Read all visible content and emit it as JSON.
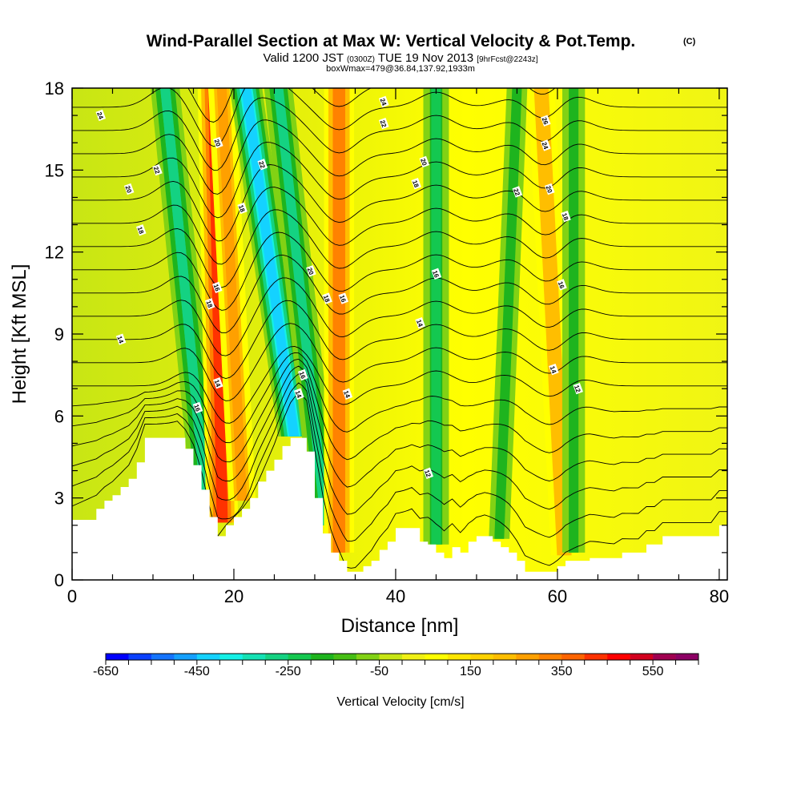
{
  "chart_data": {
    "type": "heatmap",
    "title": "Wind-Parallel Section at Max W: Vertical Velocity & Pot.Temp.",
    "title_mark": "(C)",
    "subtitle_parts": [
      "Valid 1200 JST ",
      "(0300Z)",
      " TUE 19 Nov 2013 ",
      "[9hrFcst@2243z]"
    ],
    "subtitle2": "boxWmax=479@36.84,137.92,1933m",
    "xlabel": "Distance [nm]",
    "ylabel": "Height [Kft MSL]",
    "xlim": [
      0,
      81
    ],
    "ylim": [
      0,
      18
    ],
    "xticks": [
      0,
      20,
      40,
      60,
      80
    ],
    "yticks": [
      0,
      3,
      6,
      9,
      12,
      15,
      18
    ],
    "grid": false,
    "colorbar": {
      "label": "Vertical Velocity [cm/s]",
      "min": -650,
      "max": 650,
      "step": 50,
      "tick_labels": [
        "-650",
        "-450",
        "-250",
        "-50",
        "150",
        "350",
        "550"
      ],
      "colors": [
        "#0000ff",
        "#0a40ff",
        "#1474ff",
        "#14a0ff",
        "#14d2ff",
        "#14f0e6",
        "#14e1b4",
        "#14d282",
        "#14c850",
        "#1eb41e",
        "#46be14",
        "#82d214",
        "#c8e614",
        "#f0f014",
        "#ffff00",
        "#ffe600",
        "#ffd200",
        "#ffbe00",
        "#ffa000",
        "#ff8200",
        "#ff6400",
        "#ff3200",
        "#ff0000",
        "#d2001e",
        "#a00050",
        "#8c0064"
      ]
    },
    "vertical_velocity_bands": [
      {
        "distance_at_3kft": 16.5,
        "distance_at_18kft": 11.5,
        "value": -300
      },
      {
        "distance_at_3kft": 18.5,
        "distance_at_18kft": 17.5,
        "value": 420
      },
      {
        "distance_at_3kft": 21.0,
        "distance_at_18kft": 18.5,
        "value": 250
      },
      {
        "distance_at_3kft": 28.5,
        "distance_at_18kft": 21.5,
        "value": -450
      },
      {
        "distance_at_3kft": 31.0,
        "distance_at_18kft": 25.5,
        "value": -280
      },
      {
        "distance_at_3kft": 33.0,
        "distance_at_18kft": 33.0,
        "value": 330
      },
      {
        "distance_at_3kft": 45.0,
        "distance_at_18kft": 45.0,
        "value": -220
      },
      {
        "distance_at_3kft": 53.0,
        "distance_at_18kft": 55.0,
        "value": -160
      },
      {
        "distance_at_3kft": 60.5,
        "distance_at_18kft": 58.0,
        "value": 240
      },
      {
        "distance_at_3kft": 62.0,
        "distance_at_18kft": 62.0,
        "value": -180
      }
    ],
    "terrain": {
      "distance": [
        0,
        3,
        4,
        5,
        6,
        7,
        8,
        9,
        10,
        11,
        13,
        14,
        15,
        16,
        17,
        18,
        19,
        20,
        21,
        22,
        23,
        24,
        25,
        26,
        27,
        28,
        29,
        30,
        31,
        32,
        33,
        34,
        35,
        36,
        37,
        38,
        39,
        40,
        41,
        42,
        43,
        44,
        45,
        46,
        47,
        48,
        49,
        50,
        51,
        52,
        53,
        54,
        55,
        56,
        57,
        58,
        59,
        60,
        61,
        62,
        63,
        64,
        65,
        66,
        67,
        68,
        69,
        70,
        71,
        72,
        73,
        74,
        75,
        76,
        77,
        78,
        79,
        80,
        81
      ],
      "height_kft": [
        2.2,
        2.6,
        2.9,
        3.1,
        3.4,
        3.7,
        4.3,
        5.2,
        5.2,
        5.2,
        5.2,
        4.8,
        4.2,
        3.3,
        2.3,
        1.6,
        2.0,
        2.3,
        2.6,
        3.0,
        3.6,
        4.0,
        4.4,
        4.9,
        5.2,
        5.2,
        4.7,
        3.0,
        1.7,
        1.0,
        0.7,
        0.3,
        0.3,
        0.5,
        0.7,
        1.1,
        1.4,
        1.9,
        1.9,
        1.9,
        1.4,
        1.3,
        1.0,
        0.8,
        1.2,
        1.0,
        1.4,
        1.6,
        1.6,
        1.4,
        1.2,
        1.0,
        0.7,
        0.3,
        0.3,
        0.3,
        0.3,
        0.5,
        0.7,
        0.7,
        0.7,
        0.8,
        0.8,
        0.8,
        0.8,
        1.0,
        1.0,
        1.0,
        1.3,
        1.3,
        1.6,
        1.6,
        1.6,
        1.6,
        1.6,
        1.6,
        1.6,
        2.0,
        2.0
      ],
      "note_distance_units": "nm"
    },
    "potential_temperature_labels": [
      {
        "value": "24",
        "distance": 3.5,
        "height_kft": 17.0
      },
      {
        "value": "22",
        "distance": 10.5,
        "height_kft": 15.0
      },
      {
        "value": "20",
        "distance": 7.0,
        "height_kft": 14.3
      },
      {
        "value": "18",
        "distance": 8.5,
        "height_kft": 12.8
      },
      {
        "value": "14",
        "distance": 6.0,
        "height_kft": 8.8
      },
      {
        "value": "20",
        "distance": 18.0,
        "height_kft": 16.0
      },
      {
        "value": "22",
        "distance": 23.5,
        "height_kft": 15.2
      },
      {
        "value": "18",
        "distance": 21.0,
        "height_kft": 13.6
      },
      {
        "value": "18",
        "distance": 17.0,
        "height_kft": 10.1
      },
      {
        "value": "16",
        "distance": 17.9,
        "height_kft": 10.7
      },
      {
        "value": "16",
        "distance": 15.5,
        "height_kft": 6.3
      },
      {
        "value": "14",
        "distance": 18.0,
        "height_kft": 7.2
      },
      {
        "value": "20",
        "distance": 29.5,
        "height_kft": 11.3
      },
      {
        "value": "18",
        "distance": 31.5,
        "height_kft": 10.3
      },
      {
        "value": "16",
        "distance": 33.5,
        "height_kft": 10.3
      },
      {
        "value": "16",
        "distance": 28.5,
        "height_kft": 7.5
      },
      {
        "value": "14",
        "distance": 28.0,
        "height_kft": 6.8
      },
      {
        "value": "14",
        "distance": 34.0,
        "height_kft": 6.8
      },
      {
        "value": "24",
        "distance": 38.5,
        "height_kft": 17.5
      },
      {
        "value": "22",
        "distance": 38.5,
        "height_kft": 16.7
      },
      {
        "value": "20",
        "distance": 43.5,
        "height_kft": 15.3
      },
      {
        "value": "18",
        "distance": 42.5,
        "height_kft": 14.5
      },
      {
        "value": "16",
        "distance": 45.0,
        "height_kft": 11.2
      },
      {
        "value": "14",
        "distance": 43.0,
        "height_kft": 9.4
      },
      {
        "value": "12",
        "distance": 44.0,
        "height_kft": 3.9
      },
      {
        "value": "26",
        "distance": 58.5,
        "height_kft": 16.8
      },
      {
        "value": "24",
        "distance": 58.5,
        "height_kft": 15.9
      },
      {
        "value": "22",
        "distance": 55.0,
        "height_kft": 14.2
      },
      {
        "value": "20",
        "distance": 59.0,
        "height_kft": 14.3
      },
      {
        "value": "18",
        "distance": 61.0,
        "height_kft": 13.3
      },
      {
        "value": "16",
        "distance": 60.5,
        "height_kft": 10.8
      },
      {
        "value": "14",
        "distance": 59.5,
        "height_kft": 7.7
      },
      {
        "value": "12",
        "distance": 62.5,
        "height_kft": 7.0
      }
    ]
  }
}
